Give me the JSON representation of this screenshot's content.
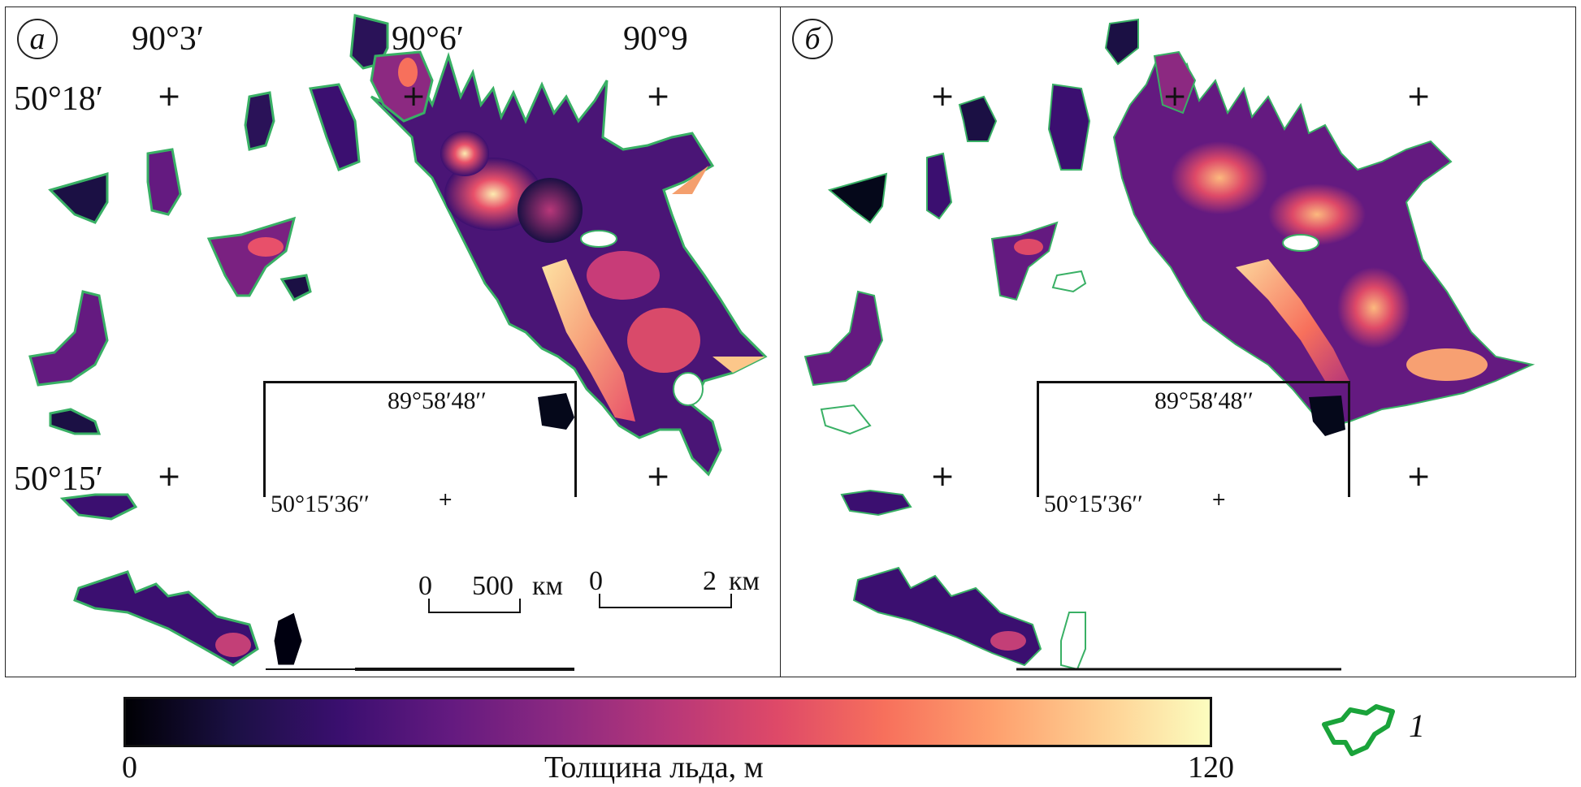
{
  "panels": [
    {
      "label": "а",
      "coords": {
        "lon1": "90°3′",
        "lon2": "90°6′",
        "lon3": "90°9",
        "lat1": "50°18′",
        "lat2": "50°15′"
      },
      "inset": {
        "lon": "89°58′48′′",
        "lat": "50°15′36′′"
      },
      "scale_inset": {
        "start": "0",
        "end": "500",
        "unit": "км"
      },
      "scale_main": {
        "start": "0",
        "end": "2",
        "unit": "км"
      }
    },
    {
      "label": "б",
      "inset": {
        "lon": "89°58′48′′",
        "lat": "50°15′36′′"
      }
    }
  ],
  "colorbar": {
    "min": "0",
    "max": "120",
    "title": "Толщина льда, м",
    "colors": [
      "#000004",
      "#1b1044",
      "#3b0f70",
      "#641a80",
      "#8c2981",
      "#b73779",
      "#de4968",
      "#f7705c",
      "#fe9f6d",
      "#fecf92",
      "#fcfdbf"
    ]
  },
  "legend": {
    "number": "1",
    "outline_color": "#1aa33a"
  }
}
